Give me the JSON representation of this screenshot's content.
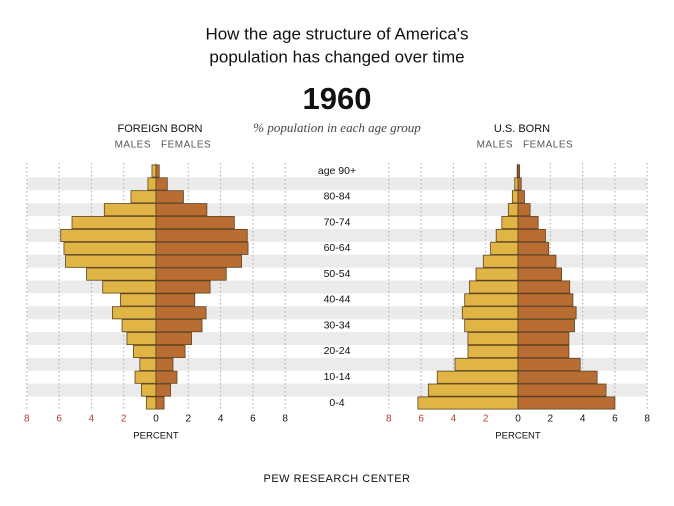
{
  "title": [
    "How the age structure of America's",
    "population has changed over time"
  ],
  "year": "1960",
  "subtitle": "% population in each age group",
  "source": "PEW RESEARCH CENTER",
  "categories": [
    "0-4",
    null,
    "10-14",
    null,
    "20-24",
    null,
    "30-34",
    null,
    "40-44",
    null,
    "50-54",
    null,
    "60-64",
    null,
    "70-74",
    null,
    "80-84",
    null,
    "age 90+"
  ],
  "chart_data": [
    {
      "type": "pyramid",
      "title": "FOREIGN BORN",
      "xlabel": "PERCENT",
      "xlim": [
        0,
        8
      ],
      "male_xticks": [
        8,
        6,
        4,
        2
      ],
      "female_xticks": [
        0,
        2,
        4,
        6,
        8
      ],
      "male_tick_color": "#b5402a",
      "grid": true,
      "series": [
        {
          "name": "MALES",
          "color": "#e0b545",
          "values": [
            0.6,
            0.9,
            1.3,
            1.0,
            1.4,
            1.8,
            2.1,
            2.7,
            2.2,
            3.3,
            4.3,
            5.6,
            5.7,
            5.9,
            5.2,
            3.2,
            1.55,
            0.5,
            0.25
          ]
        },
        {
          "name": "FEMALES",
          "color": "#b96d33",
          "values": [
            0.5,
            0.9,
            1.3,
            1.05,
            1.8,
            2.2,
            2.85,
            3.1,
            2.4,
            3.35,
            4.35,
            5.3,
            5.7,
            5.65,
            4.85,
            3.15,
            1.7,
            0.7,
            0.2
          ]
        }
      ]
    },
    {
      "type": "pyramid",
      "title": "U.S. BORN",
      "xlabel": "PERCENT",
      "xlim": [
        0,
        8
      ],
      "male_xticks": [
        8,
        6,
        4,
        2
      ],
      "female_xticks": [
        0,
        2,
        4,
        6,
        8
      ],
      "male_tick_color": "#b5402a",
      "grid": true,
      "series": [
        {
          "name": "MALES",
          "color": "#e0b545",
          "values": [
            6.2,
            5.55,
            5.0,
            3.9,
            3.1,
            3.1,
            3.3,
            3.45,
            3.3,
            3.0,
            2.6,
            2.15,
            1.7,
            1.35,
            1.0,
            0.6,
            0.35,
            0.2,
            0.05
          ]
        },
        {
          "name": "FEMALES",
          "color": "#b96d33",
          "values": [
            6.0,
            5.45,
            4.9,
            3.85,
            3.15,
            3.15,
            3.5,
            3.6,
            3.4,
            3.2,
            2.7,
            2.35,
            1.9,
            1.7,
            1.25,
            0.75,
            0.4,
            0.2,
            0.1
          ]
        }
      ]
    }
  ]
}
